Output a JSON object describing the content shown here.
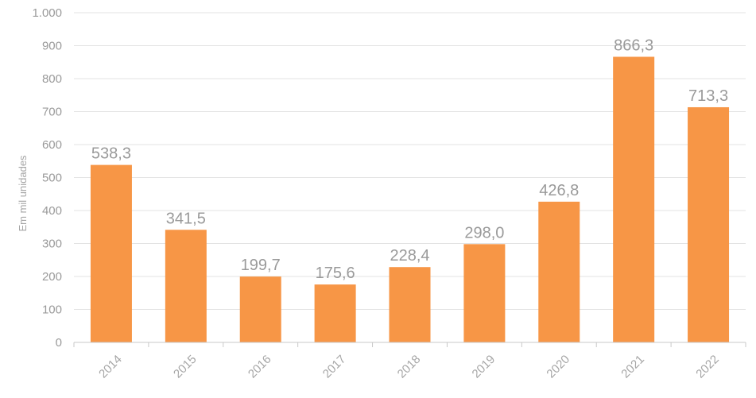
{
  "chart_data": {
    "type": "bar",
    "title": "",
    "xlabel": "",
    "ylabel": "Em mil unidades",
    "categories": [
      "2014",
      "2015",
      "2016",
      "2017",
      "2018",
      "2019",
      "2020",
      "2021",
      "2022"
    ],
    "values": [
      538.3,
      341.5,
      199.7,
      175.6,
      228.4,
      298.0,
      426.8,
      866.3,
      713.3
    ],
    "value_labels": [
      "538,3",
      "341,5",
      "199,7",
      "175,6",
      "228,4",
      "298,0",
      "426,8",
      "866,3",
      "713,3"
    ],
    "ylim": [
      0,
      1000
    ],
    "yticks": [
      0,
      100,
      200,
      300,
      400,
      500,
      600,
      700,
      800,
      900,
      1000
    ],
    "ytick_labels": [
      "0",
      "100",
      "200",
      "300",
      "400",
      "500",
      "600",
      "700",
      "800",
      "900",
      "1.000"
    ],
    "grid": true,
    "legend": "none",
    "colors": {
      "bar": "#f79646",
      "grid": "#e3e3e3",
      "axis": "#c8c8c8",
      "text": "#9a9a9a"
    }
  }
}
